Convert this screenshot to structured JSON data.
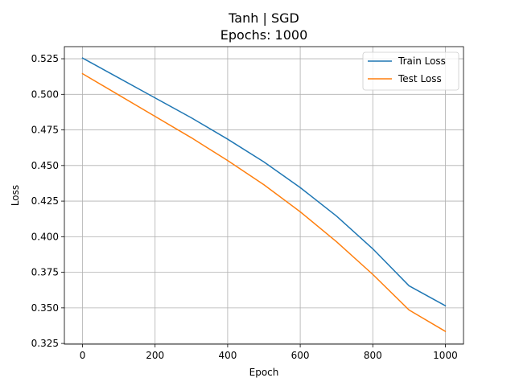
{
  "chart_data": {
    "type": "line",
    "title": "Tanh | SGD",
    "subtitle": "Epochs: 1000",
    "xlabel": "Epoch",
    "ylabel": "Loss",
    "xlim": [
      -50,
      1050
    ],
    "ylim": [
      0.3245,
      0.5335
    ],
    "xticks": [
      0,
      200,
      400,
      600,
      800,
      1000
    ],
    "yticks": [
      0.325,
      0.35,
      0.375,
      0.4,
      0.425,
      0.45,
      0.475,
      0.5,
      0.525
    ],
    "xtick_labels": [
      "0",
      "200",
      "400",
      "600",
      "800",
      "1000"
    ],
    "ytick_labels": [
      "0.325",
      "0.350",
      "0.375",
      "0.400",
      "0.425",
      "0.450",
      "0.475",
      "0.500",
      "0.525"
    ],
    "grid": true,
    "legend_position": "top-right",
    "x": [
      0,
      100,
      200,
      300,
      400,
      500,
      600,
      700,
      800,
      900,
      1000
    ],
    "series": [
      {
        "name": "Train Loss",
        "color": "#1f77b4",
        "values": [
          0.5255,
          0.5115,
          0.4975,
          0.4835,
          0.4685,
          0.4525,
          0.4345,
          0.4145,
          0.3915,
          0.3655,
          0.3515
        ]
      },
      {
        "name": "Test Loss",
        "color": "#ff7f0e",
        "values": [
          0.5145,
          0.4995,
          0.4845,
          0.4695,
          0.4535,
          0.4365,
          0.4175,
          0.3965,
          0.3735,
          0.3485,
          0.3335
        ]
      }
    ]
  }
}
